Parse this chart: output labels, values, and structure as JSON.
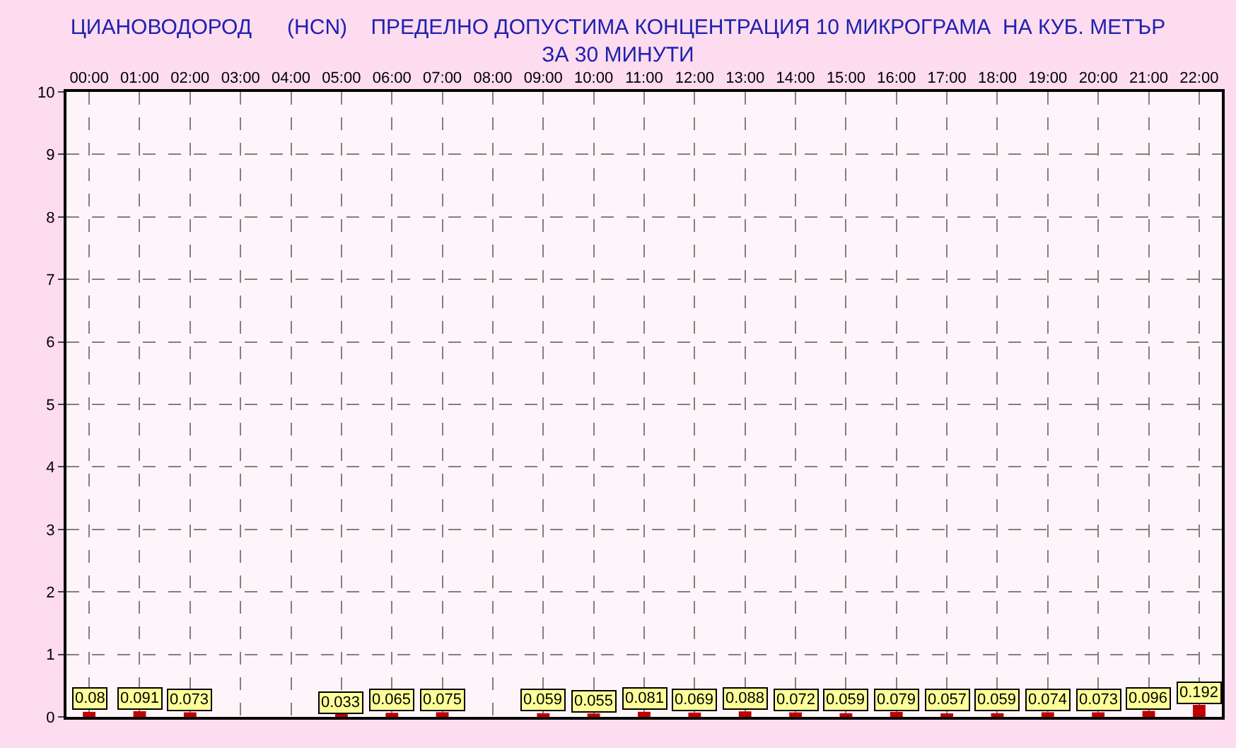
{
  "chart_data": {
    "type": "bar",
    "title": "ЦИАНОВОДОРОД      (HCN)    ПРЕДЕЛНО ДОПУСТИМА КОНЦЕНТРАЦИЯ 10 МИКРОГРАМА  НА КУБ. МЕТЪР\nЗА 30 МИНУТИ",
    "categories": [
      "00:00",
      "01:00",
      "02:00",
      "03:00",
      "04:00",
      "05:00",
      "06:00",
      "07:00",
      "08:00",
      "09:00",
      "10:00",
      "11:00",
      "12:00",
      "13:00",
      "14:00",
      "15:00",
      "16:00",
      "17:00",
      "18:00",
      "19:00",
      "20:00",
      "21:00",
      "22:00"
    ],
    "values": [
      0.08,
      0.091,
      0.073,
      null,
      null,
      0.033,
      0.065,
      0.075,
      null,
      0.059,
      0.055,
      0.081,
      0.069,
      0.088,
      0.072,
      0.059,
      0.079,
      0.057,
      0.059,
      0.074,
      0.073,
      0.096,
      0.192
    ],
    "value_labels": [
      "0.08",
      "0.091",
      "0.073",
      null,
      null,
      "0.033",
      "0.065",
      "0.075",
      null,
      "0.059",
      "0.055",
      "0.081",
      "0.069",
      "0.088",
      "0.072",
      "0.059",
      "0.079",
      "0.057",
      "0.059",
      "0.074",
      "0.073",
      "0.096",
      "0.192"
    ],
    "color": "#c00000",
    "ylim": [
      0,
      10
    ],
    "yticks": [
      0,
      1,
      2,
      3,
      4,
      5,
      6,
      7,
      8,
      9,
      10
    ],
    "grid": true,
    "legend": false
  }
}
